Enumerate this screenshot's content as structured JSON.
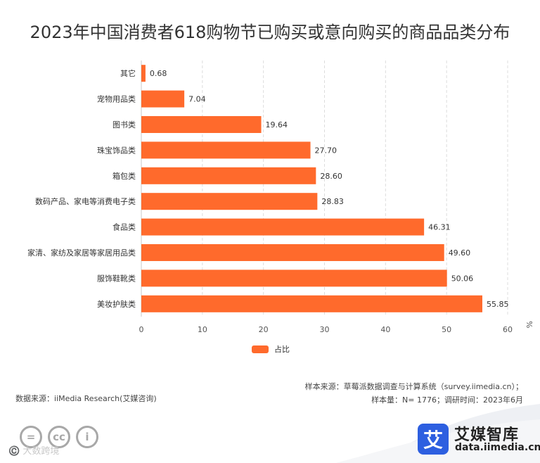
{
  "chart_data": {
    "type": "bar",
    "orientation": "horizontal",
    "title": "2023年中国消费者618购物节已购买或意向购买的商品品类分布",
    "categories": [
      "其它",
      "宠物用品类",
      "图书类",
      "珠宝饰品类",
      "箱包类",
      "数码产品、家电等消费电子类",
      "食品类",
      "家清、家纺及家居等家居用品类",
      "服饰鞋靴类",
      "美妆护肤类"
    ],
    "value_labels": [
      "0.68",
      "7.04",
      "19.64",
      "27.70",
      "28.60",
      "28.83",
      "46.31",
      "49.60",
      "50.06",
      "55.85"
    ],
    "series": [
      {
        "name": "占比",
        "color": "#FF6A2C",
        "values": [
          0.68,
          7.04,
          19.64,
          27.7,
          28.6,
          28.83,
          46.31,
          49.6,
          50.06,
          55.85
        ]
      }
    ],
    "xlim": [
      0,
      60
    ],
    "xticks": [
      "0",
      "10",
      "20",
      "30",
      "40",
      "50",
      "60"
    ],
    "unit": "%",
    "grid": "vertical dashed",
    "legend": "bottom-center"
  },
  "footer": {
    "source": "数据来源：iiMedia Research(艾媒咨询)",
    "sample_source": "样本来源：草莓派数据调查与计算系统（survey.iimedia.cn）；",
    "sample_info": "样本量：N= 1776；调研时间：2023年6月"
  },
  "brand": {
    "logo_char": "艾",
    "name": "艾媒智库",
    "url": "data.iimedia.cn",
    "watermark": "©️ 大数跨境"
  },
  "cc": {
    "icon1": "=",
    "icon2": "cc",
    "icon3": "i"
  }
}
